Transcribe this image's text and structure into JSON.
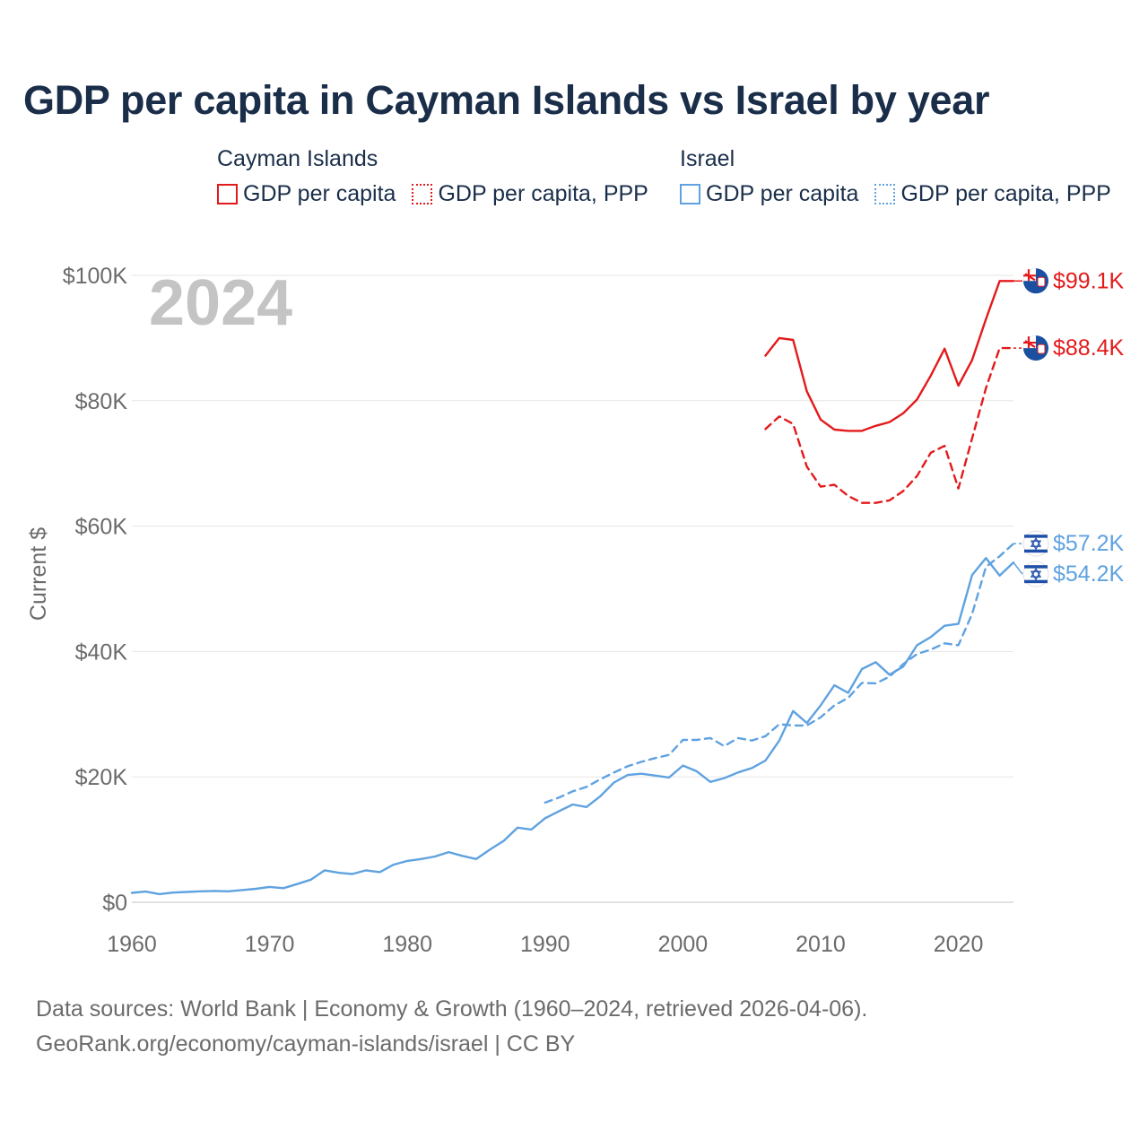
{
  "title": "GDP per capita in Cayman Islands vs Israel by year",
  "legend": {
    "groups": [
      {
        "name": "Cayman Islands",
        "color": "#e31a1c",
        "items": [
          {
            "label": "GDP per capita",
            "style": "solid"
          },
          {
            "label": "GDP per capita, PPP",
            "style": "dotted"
          }
        ]
      },
      {
        "name": "Israel",
        "color": "#5fa2e0",
        "items": [
          {
            "label": "GDP per capita",
            "style": "solid"
          },
          {
            "label": "GDP per capita, PPP",
            "style": "dotted"
          }
        ]
      }
    ]
  },
  "year_watermark": "2024",
  "source": {
    "line1": "Data sources: World Bank | Economy & Growth (1960–2024, retrieved 2026-04-06).",
    "line2": "GeoRank.org/economy/cayman-islands/israel | CC BY"
  },
  "chart_data": {
    "type": "line",
    "title": "GDP per capita in Cayman Islands vs Israel by year",
    "xlabel": "",
    "ylabel": "Current $",
    "xlim": [
      1960,
      2024
    ],
    "ylim": [
      0,
      100000
    ],
    "x_ticks": [
      1960,
      1970,
      1980,
      1990,
      2000,
      2010,
      2020
    ],
    "x_tick_labels": [
      "1960",
      "1970",
      "1980",
      "1990",
      "2000",
      "2010",
      "2020"
    ],
    "y_ticks": [
      0,
      20000,
      40000,
      60000,
      80000,
      100000
    ],
    "y_tick_labels": [
      "$0",
      "$20K",
      "$40K",
      "$60K",
      "$80K",
      "$100K"
    ],
    "grid": true,
    "series": [
      {
        "name": "Cayman Islands — GDP per capita",
        "color": "#e31a1c",
        "dash": "solid",
        "flag": "cayman",
        "end_label": "$99.1K",
        "x": [
          2006,
          2007,
          2008,
          2009,
          2010,
          2011,
          2012,
          2013,
          2014,
          2015,
          2016,
          2017,
          2018,
          2019,
          2020,
          2021,
          2022,
          2023,
          2024
        ],
        "values": [
          87200,
          90000,
          89700,
          81500,
          77000,
          75400,
          75200,
          75200,
          76000,
          76600,
          78000,
          80200,
          84000,
          88300,
          82400,
          86500,
          93000,
          99100,
          99100
        ]
      },
      {
        "name": "Cayman Islands — GDP per capita, PPP",
        "color": "#e31a1c",
        "dash": "dashed",
        "flag": "cayman",
        "end_label": "$88.4K",
        "x": [
          2006,
          2007,
          2008,
          2009,
          2010,
          2011,
          2012,
          2013,
          2014,
          2015,
          2016,
          2017,
          2018,
          2019,
          2020,
          2021,
          2022,
          2023,
          2024
        ],
        "values": [
          75500,
          77500,
          76300,
          69500,
          66300,
          66600,
          64800,
          63700,
          63700,
          64100,
          65600,
          68000,
          71700,
          72800,
          66000,
          74000,
          82000,
          88400,
          88400
        ]
      },
      {
        "name": "Israel — GDP per capita",
        "color": "#5fa2e0",
        "dash": "solid",
        "flag": "israel",
        "end_label": "$54.2K",
        "x": [
          1960,
          1961,
          1962,
          1963,
          1964,
          1965,
          1966,
          1967,
          1968,
          1969,
          1970,
          1971,
          1972,
          1973,
          1974,
          1975,
          1976,
          1977,
          1978,
          1979,
          1980,
          1981,
          1982,
          1983,
          1984,
          1985,
          1986,
          1987,
          1988,
          1989,
          1990,
          1991,
          1992,
          1993,
          1994,
          1995,
          1996,
          1997,
          1998,
          1999,
          2000,
          2001,
          2002,
          2003,
          2004,
          2005,
          2006,
          2007,
          2008,
          2009,
          2010,
          2011,
          2012,
          2013,
          2014,
          2015,
          2016,
          2017,
          2018,
          2019,
          2020,
          2021,
          2022,
          2023,
          2024
        ],
        "values": [
          1500,
          1700,
          1300,
          1550,
          1650,
          1750,
          1800,
          1750,
          1950,
          2150,
          2450,
          2250,
          2900,
          3600,
          5100,
          4700,
          4500,
          5100,
          4800,
          6000,
          6600,
          6900,
          7300,
          8000,
          7400,
          6900,
          8400,
          9800,
          11900,
          11600,
          13400,
          14500,
          15600,
          15200,
          16900,
          19100,
          20300,
          20500,
          20200,
          19900,
          21800,
          20900,
          19200,
          19800,
          20700,
          21400,
          22600,
          25800,
          30500,
          28600,
          31400,
          34600,
          33400,
          37200,
          38300,
          36300,
          37600,
          41000,
          42300,
          44100,
          44400,
          52200,
          54900,
          52100,
          54200
        ]
      },
      {
        "name": "Israel — GDP per capita, PPP",
        "color": "#5fa2e0",
        "dash": "dashed",
        "flag": "israel",
        "end_label": "$57.2K",
        "x": [
          1990,
          1991,
          1992,
          1993,
          1994,
          1995,
          1996,
          1997,
          1998,
          1999,
          2000,
          2001,
          2002,
          2003,
          2004,
          2005,
          2006,
          2007,
          2008,
          2009,
          2010,
          2011,
          2012,
          2013,
          2014,
          2015,
          2016,
          2017,
          2018,
          2019,
          2020,
          2021,
          2022,
          2023,
          2024
        ],
        "values": [
          15900,
          16700,
          17700,
          18400,
          19600,
          20700,
          21700,
          22400,
          23000,
          23500,
          25900,
          25900,
          26200,
          24900,
          26200,
          25800,
          26500,
          28400,
          28200,
          28200,
          29500,
          31400,
          32600,
          35000,
          34900,
          36000,
          38000,
          39600,
          40300,
          41300,
          41000,
          46000,
          53500,
          55200,
          57200
        ]
      }
    ]
  }
}
